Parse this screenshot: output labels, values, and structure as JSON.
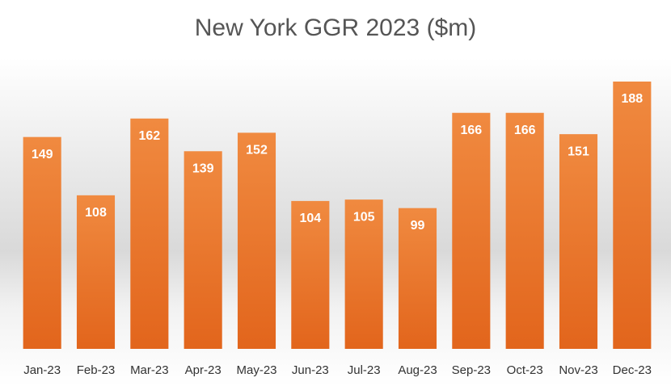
{
  "chart_data": {
    "type": "bar",
    "title": "New York GGR 2023 ($m)",
    "categories": [
      "Jan-23",
      "Feb-23",
      "Mar-23",
      "Apr-23",
      "May-23",
      "Jun-23",
      "Jul-23",
      "Aug-23",
      "Sep-23",
      "Oct-23",
      "Nov-23",
      "Dec-23"
    ],
    "values": [
      149,
      108,
      162,
      139,
      152,
      104,
      105,
      99,
      166,
      166,
      151,
      188
    ],
    "color": "#ec7a30"
  }
}
